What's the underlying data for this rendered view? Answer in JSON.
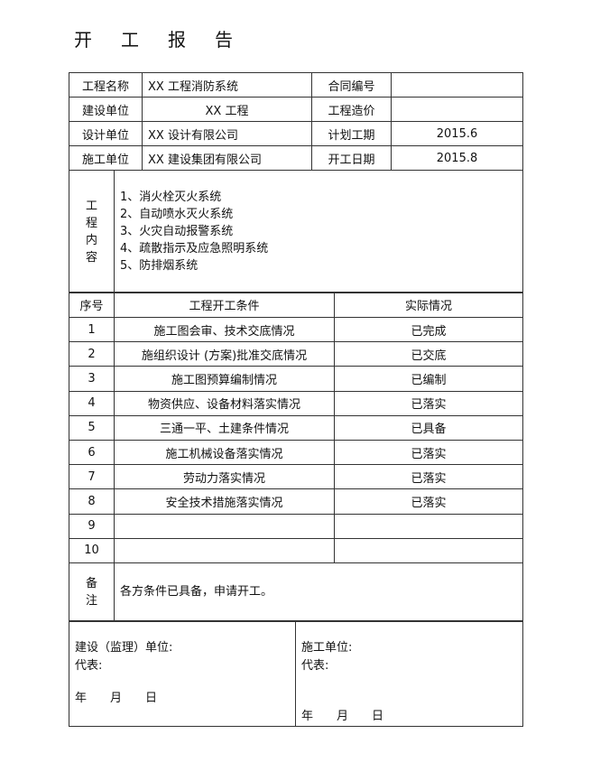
{
  "title": "开工报告",
  "info": [
    {
      "label": "工程名称",
      "value": "XX 工程消防系统",
      "label2": "合同编号",
      "value2": ""
    },
    {
      "label": "建设单位",
      "value": "XX 工程",
      "label2": "工程造价",
      "value2": ""
    },
    {
      "label": "设计单位",
      "value": "XX 设计有限公司",
      "label2": "计划工期",
      "value2": "2015.6"
    },
    {
      "label": "施工单位",
      "value": "XX 建设集团有限公司",
      "label2": "开工日期",
      "value2": "2015.8"
    }
  ],
  "content": {
    "label": "工程内容",
    "items": [
      "1、消火栓灭火系统",
      "2、自动喷水灭火系统",
      "3、火灾自动报警系统",
      "4、疏散指示及应急照明系统",
      "5、防排烟系统"
    ]
  },
  "conditions": {
    "headers": [
      "序号",
      "工程开工条件",
      "实际情况"
    ],
    "rows": [
      [
        "1",
        "施工图会审、技术交底情况",
        "已完成"
      ],
      [
        "2",
        "施组织设计 (方案)批准交底情况",
        "已交底"
      ],
      [
        "3",
        "施工图预算编制情况",
        "已编制"
      ],
      [
        "4",
        "物资供应、设备材料落实情况",
        "已落实"
      ],
      [
        "5",
        "三通一平、土建条件情况",
        "已具备"
      ],
      [
        "6",
        "施工机械设备落实情况",
        "已落实"
      ],
      [
        "7",
        "劳动力落实情况",
        "已落实"
      ],
      [
        "8",
        "安全技术措施落实情况",
        "已落实"
      ],
      [
        "9",
        "",
        ""
      ],
      [
        "10",
        "",
        ""
      ]
    ]
  },
  "notes": {
    "label": "备注",
    "text": "各方条件已具备，申请开工。"
  },
  "signatures": {
    "left": {
      "unit": "建设（监理）单位:",
      "rep": "代表:",
      "date": "年　　月　　日"
    },
    "right": {
      "unit": "施工单位:",
      "rep": "代表:",
      "date": "年　　月　　日"
    }
  }
}
